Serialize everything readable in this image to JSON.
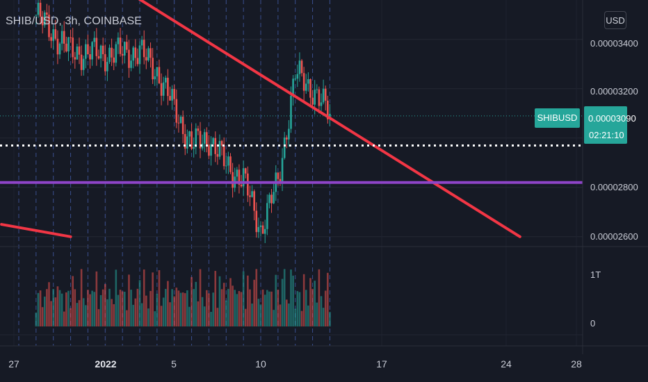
{
  "header": {
    "symbol_line": "SHIB/USD, 3h, COINBASE",
    "currency_button": "USD"
  },
  "price_tag": {
    "symbol": "SHIBUSD",
    "last_price": "0.00003090",
    "countdown": "02:21:10"
  },
  "y_axis": {
    "ticks": [
      "0.00003400",
      "0.00003200",
      "0.00002800",
      "0.00002600"
    ],
    "volume_ticks": [
      "1T",
      "0"
    ]
  },
  "x_axis": {
    "ticks": [
      "27",
      "2022",
      "5",
      "10",
      "17",
      "24",
      "28"
    ]
  },
  "colors": {
    "background": "#161a25",
    "up": "#26a69a",
    "down": "#ef5350",
    "trendline": "#f23645",
    "support_line": "#8e44c8",
    "dotted_line": "#ffffff",
    "session_lines": "#3a4f8f"
  },
  "chart_data": {
    "type": "candlestick",
    "symbol": "SHIB/USD",
    "interval": "3h",
    "exchange": "COINBASE",
    "ylim": [
      2.56e-05,
      3.56e-05
    ],
    "last_price": 3.09e-05,
    "price_key_points": [
      {
        "date": "2021-12-28",
        "close": 3.5e-05
      },
      {
        "date": "2021-12-30",
        "close": 3.35e-05
      },
      {
        "date": "2022-01-01",
        "close": 3.34e-05
      },
      {
        "date": "2022-01-03",
        "close": 3.35e-05
      },
      {
        "date": "2022-01-04",
        "close": 3.27e-05
      },
      {
        "date": "2022-01-06",
        "close": 2.97e-05
      },
      {
        "date": "2022-01-07",
        "close": 3e-05
      },
      {
        "date": "2022-01-08",
        "close": 2.89e-05
      },
      {
        "date": "2022-01-09",
        "close": 2.83e-05
      },
      {
        "date": "2022-01-10",
        "close": 2.63e-05
      },
      {
        "date": "2022-01-11",
        "close": 2.82e-05
      },
      {
        "date": "2022-01-12",
        "close": 3.26e-05
      },
      {
        "date": "2022-01-13",
        "close": 3.2e-05
      },
      {
        "date": "2022-01-14",
        "close": 3.09e-05
      }
    ],
    "horizontal_lines": [
      {
        "name": "support",
        "price": 2.82e-05
      },
      {
        "name": "dotted",
        "price": 2.97e-05
      }
    ],
    "trendlines": [
      {
        "from_date": "2022-01-01",
        "from_price": 3.65e-05,
        "to_date": "2022-01-25",
        "to_price": 2.6e-05
      },
      {
        "from_date": "2021-12-26",
        "from_price": 2.65e-05,
        "to_date": "2021-12-30",
        "to_price": 2.6e-05
      }
    ],
    "volume_range": [
      0,
      2
    ]
  }
}
